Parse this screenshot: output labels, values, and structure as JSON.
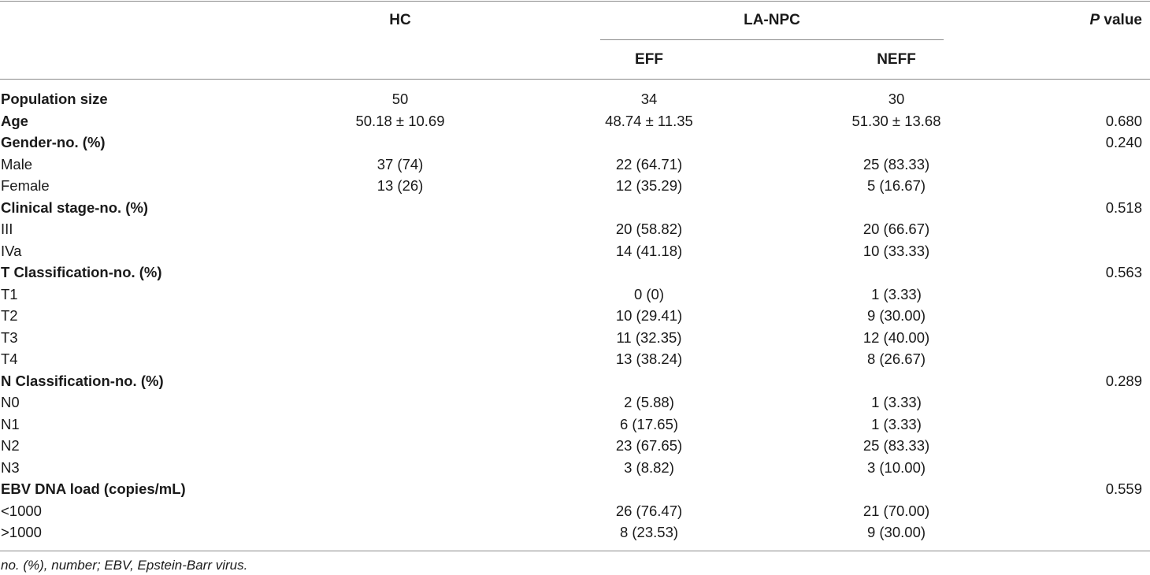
{
  "header": {
    "hc": "HC",
    "lanpc": "LA-NPC",
    "eff": "EFF",
    "neff": "NEFF",
    "p_italic": "P",
    "p_rest": " value"
  },
  "rows": [
    {
      "label": "Population size",
      "bold": true,
      "hc": "50",
      "eff": "34",
      "neff": "30",
      "p": ""
    },
    {
      "label": "Age",
      "bold": true,
      "hc": "50.18 ± 10.69",
      "eff": "48.74 ± 11.35",
      "neff": "51.30 ± 13.68",
      "p": "0.680"
    },
    {
      "label": "Gender-no. (%)",
      "bold": true,
      "hc": "",
      "eff": "",
      "neff": "",
      "p": "0.240"
    },
    {
      "label": "Male",
      "bold": false,
      "hc": "37 (74)",
      "eff": "22 (64.71)",
      "neff": "25 (83.33)",
      "p": ""
    },
    {
      "label": "Female",
      "bold": false,
      "hc": "13 (26)",
      "eff": "12 (35.29)",
      "neff": "5 (16.67)",
      "p": ""
    },
    {
      "label": "Clinical stage-no. (%)",
      "bold": true,
      "hc": "",
      "eff": "",
      "neff": "",
      "p": "0.518"
    },
    {
      "label": "III",
      "bold": false,
      "hc": "",
      "eff": "20 (58.82)",
      "neff": "20 (66.67)",
      "p": ""
    },
    {
      "label": "IVa",
      "bold": false,
      "hc": "",
      "eff": "14 (41.18)",
      "neff": "10 (33.33)",
      "p": ""
    },
    {
      "label": "T Classification-no. (%)",
      "bold": true,
      "hc": "",
      "eff": "",
      "neff": "",
      "p": "0.563"
    },
    {
      "label": "T1",
      "bold": false,
      "hc": "",
      "eff": "0 (0)",
      "neff": "1 (3.33)",
      "p": ""
    },
    {
      "label": "T2",
      "bold": false,
      "hc": "",
      "eff": "10 (29.41)",
      "neff": "9 (30.00)",
      "p": ""
    },
    {
      "label": "T3",
      "bold": false,
      "hc": "",
      "eff": "11 (32.35)",
      "neff": "12 (40.00)",
      "p": ""
    },
    {
      "label": "T4",
      "bold": false,
      "hc": "",
      "eff": "13 (38.24)",
      "neff": "8 (26.67)",
      "p": ""
    },
    {
      "label": "N Classification-no. (%)",
      "bold": true,
      "hc": "",
      "eff": "",
      "neff": "",
      "p": "0.289"
    },
    {
      "label": "N0",
      "bold": false,
      "hc": "",
      "eff": "2 (5.88)",
      "neff": "1 (3.33)",
      "p": ""
    },
    {
      "label": "N1",
      "bold": false,
      "hc": "",
      "eff": "6 (17.65)",
      "neff": "1 (3.33)",
      "p": ""
    },
    {
      "label": "N2",
      "bold": false,
      "hc": "",
      "eff": "23 (67.65)",
      "neff": "25 (83.33)",
      "p": ""
    },
    {
      "label": "N3",
      "bold": false,
      "hc": "",
      "eff": "3 (8.82)",
      "neff": "3 (10.00)",
      "p": ""
    },
    {
      "label": "EBV DNA load (copies/mL)",
      "bold": true,
      "hc": "",
      "eff": "",
      "neff": "",
      "p": "0.559"
    },
    {
      "label": "<1000",
      "bold": false,
      "hc": "",
      "eff": "26 (76.47)",
      "neff": "21 (70.00)",
      "p": ""
    },
    {
      "label": ">1000",
      "bold": false,
      "hc": "",
      "eff": "8 (23.53)",
      "neff": "9 (30.00)",
      "p": ""
    }
  ],
  "footnote": "no. (%), number; EBV, Epstein-Barr virus."
}
